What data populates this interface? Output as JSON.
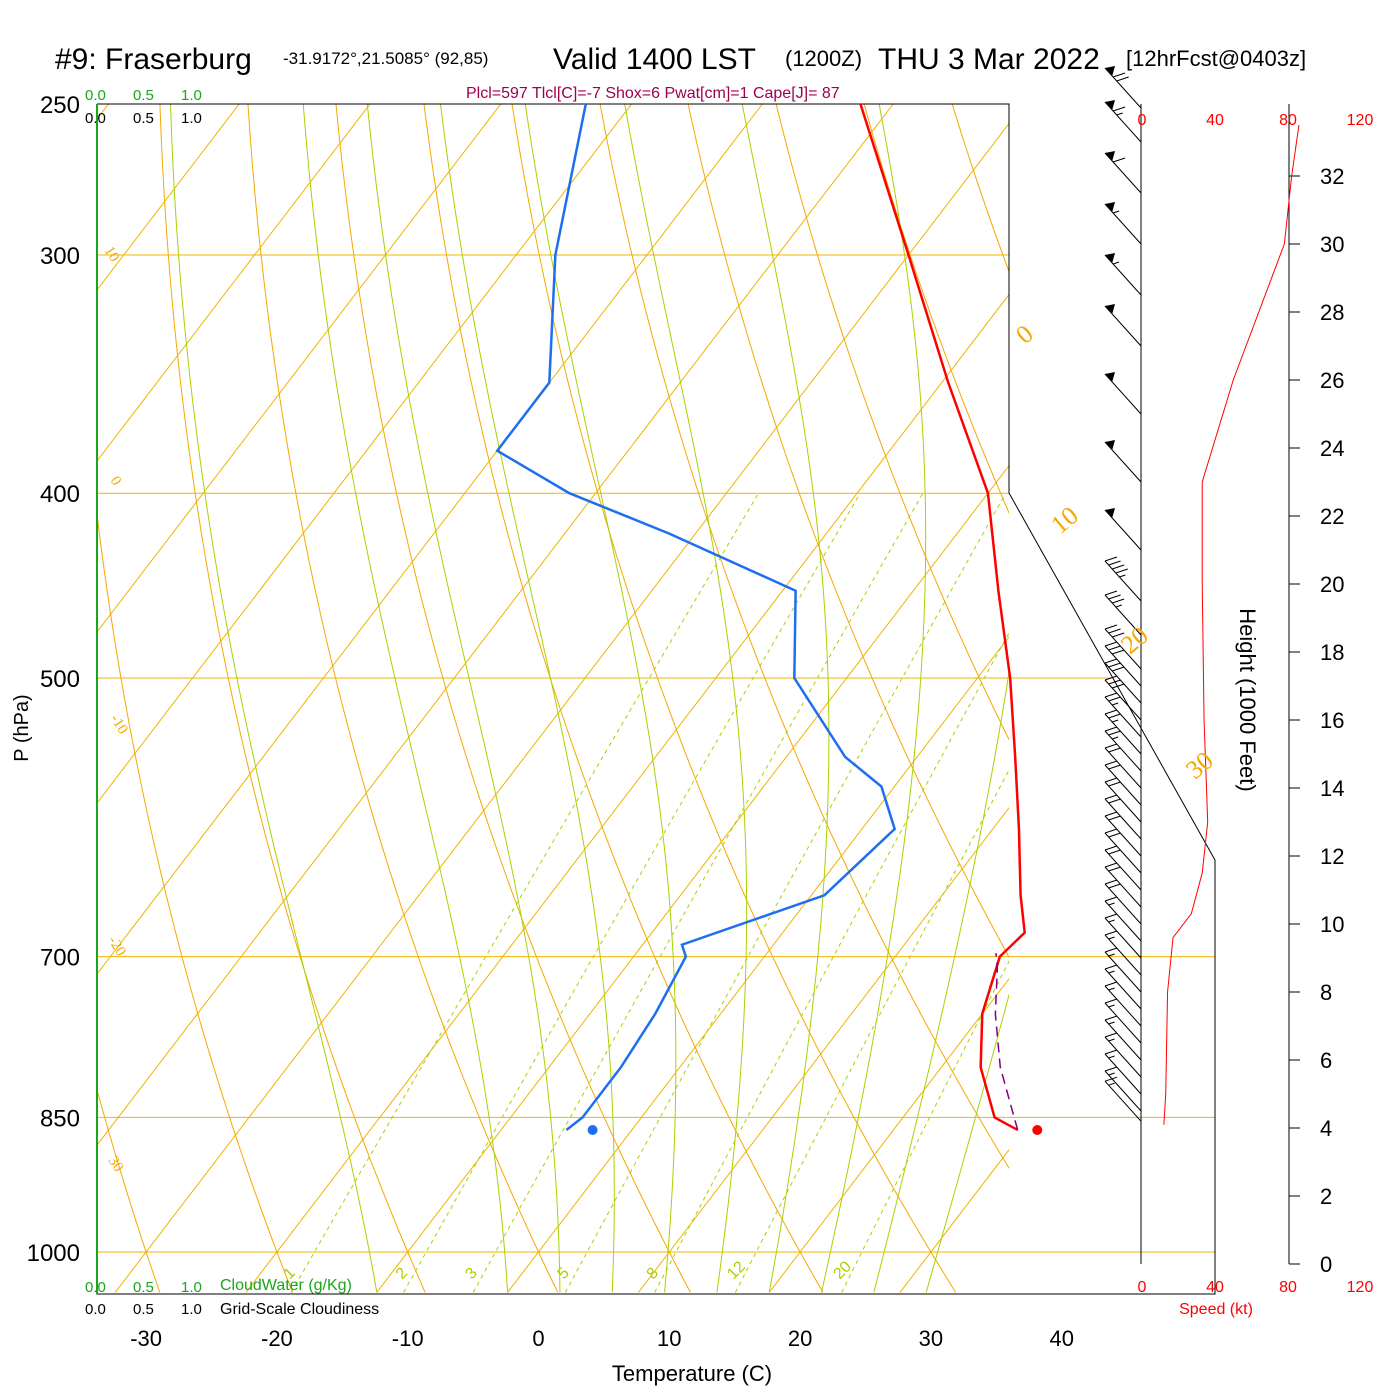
{
  "header": {
    "station": "#9: Fraserburg",
    "coords": "-31.9172°,21.5085° (92,85)",
    "valid": "Valid 1400 LST",
    "utc": "(1200Z)",
    "date": "THU 3 Mar 2022",
    "forecast": "[12hrFcst@0403z]"
  },
  "indices": "Plcl=597 Tlcl[C]=-7 Shox=6 Pwat[cm]=1 Cape[J]= 87",
  "scales": {
    "cloudwater_ticks": [
      "0.0",
      "0.5",
      "1.0"
    ],
    "cloudiness_ticks": [
      "0.0",
      "0.5",
      "1.0"
    ],
    "cloudwater_label": "CloudWater (g/Kg)",
    "cloudiness_label": "Grid-Scale Cloudiness",
    "speed_ticks": [
      "0",
      "40",
      "80",
      "120"
    ],
    "speed_label": "Speed (kt)"
  },
  "colors": {
    "temperature": "#ff0000",
    "dewpoint": "#1e6ff0",
    "parcel": "#800080",
    "isobar": "#f0b400",
    "dry_adiabat": "#f5a800",
    "moist_adiabat": "#a8d200",
    "mixing_ratio": "#a8d200",
    "cloudwater": "#1aa51a",
    "indices": "#a0004e",
    "speed": "#ff0000"
  },
  "chart_data": {
    "type": "skew-t",
    "xlabel": "Temperature (C)",
    "ylabel": "P (hPa)",
    "y2label": "Height (1000 Feet)",
    "x_ticks": [
      -30,
      -20,
      -10,
      0,
      10,
      20,
      30,
      40
    ],
    "p_ticks": [
      250,
      300,
      400,
      500,
      700,
      850,
      1000
    ],
    "p_range": [
      1000,
      250
    ],
    "height_ticks": [
      0,
      2,
      4,
      6,
      8,
      10,
      12,
      14,
      16,
      18,
      20,
      22,
      24,
      26,
      28,
      30,
      32
    ],
    "dry_adiabat_labels": [
      "30",
      "20",
      "10",
      "0",
      "-10",
      "-20",
      "-30",
      "0",
      "10",
      "20",
      "30"
    ],
    "mixing_ratio_labels": [
      "1",
      "2",
      "3",
      "5",
      "8",
      "12",
      "20"
    ],
    "temperature_profile": [
      {
        "p": 863,
        "t": 29.5
      },
      {
        "p": 850,
        "t": 27.0
      },
      {
        "p": 800,
        "t": 23.0
      },
      {
        "p": 750,
        "t": 20.0
      },
      {
        "p": 700,
        "t": 18.0
      },
      {
        "p": 680,
        "t": 18.5
      },
      {
        "p": 650,
        "t": 16.0
      },
      {
        "p": 600,
        "t": 12.0
      },
      {
        "p": 550,
        "t": 7.5
      },
      {
        "p": 500,
        "t": 2.5
      },
      {
        "p": 450,
        "t": -3.5
      },
      {
        "p": 400,
        "t": -10.0
      },
      {
        "p": 350,
        "t": -19.5
      },
      {
        "p": 300,
        "t": -30.0
      },
      {
        "p": 250,
        "t": -42.5
      }
    ],
    "dewpoint_profile": [
      {
        "p": 863,
        "td": -5.0
      },
      {
        "p": 850,
        "td": -4.5
      },
      {
        "p": 800,
        "td": -4.5
      },
      {
        "p": 750,
        "td": -5.0
      },
      {
        "p": 700,
        "td": -6.0
      },
      {
        "p": 690,
        "td": -7.0
      },
      {
        "p": 650,
        "td": 1.0
      },
      {
        "p": 600,
        "td": 2.5
      },
      {
        "p": 570,
        "td": -1.0
      },
      {
        "p": 550,
        "td": -5.5
      },
      {
        "p": 500,
        "td": -14.0
      },
      {
        "p": 450,
        "td": -19.0
      },
      {
        "p": 420,
        "td": -32.0
      },
      {
        "p": 400,
        "td": -42.0
      },
      {
        "p": 380,
        "td": -50.0
      },
      {
        "p": 350,
        "td": -50.0
      },
      {
        "p": 300,
        "td": -57.0
      },
      {
        "p": 250,
        "td": -63.5
      }
    ],
    "parcel_path": [
      {
        "p": 863,
        "t": 29.5
      },
      {
        "p": 800,
        "t": 24.5
      },
      {
        "p": 750,
        "t": 21.0
      },
      {
        "p": 710,
        "t": 18.5
      },
      {
        "p": 697,
        "t": 17.5
      }
    ],
    "surface_temperature": {
      "p": 863,
      "t": 31.0
    },
    "surface_dewpoint": {
      "p": 863,
      "td": -3.0
    },
    "wind_speed_profile": [
      {
        "h": 4.1,
        "kt": 12
      },
      {
        "h": 5,
        "kt": 13
      },
      {
        "h": 8,
        "kt": 14
      },
      {
        "h": 9.6,
        "kt": 17
      },
      {
        "h": 10.3,
        "kt": 27
      },
      {
        "h": 11.5,
        "kt": 33
      },
      {
        "h": 13,
        "kt": 36
      },
      {
        "h": 16,
        "kt": 34
      },
      {
        "h": 20,
        "kt": 33
      },
      {
        "h": 23,
        "kt": 33
      },
      {
        "h": 26,
        "kt": 50
      },
      {
        "h": 30,
        "kt": 78
      },
      {
        "h": 32,
        "kt": 82
      },
      {
        "h": 33.5,
        "kt": 86
      }
    ],
    "wind_barbs": [
      {
        "h": 34.0,
        "kt": 70
      },
      {
        "h": 33.0,
        "kt": 65
      },
      {
        "h": 31.5,
        "kt": 60
      },
      {
        "h": 30.0,
        "kt": 55
      },
      {
        "h": 28.5,
        "kt": 55
      },
      {
        "h": 27.0,
        "kt": 50
      },
      {
        "h": 25.0,
        "kt": 50
      },
      {
        "h": 23.0,
        "kt": 50
      },
      {
        "h": 21.0,
        "kt": 50
      },
      {
        "h": 19.5,
        "kt": 45
      },
      {
        "h": 18.5,
        "kt": 35
      },
      {
        "h": 17.5,
        "kt": 30
      },
      {
        "h": 17.0,
        "kt": 30
      },
      {
        "h": 16.5,
        "kt": 30
      },
      {
        "h": 16.0,
        "kt": 30
      },
      {
        "h": 15.5,
        "kt": 25
      },
      {
        "h": 15.0,
        "kt": 25
      },
      {
        "h": 14.5,
        "kt": 25
      },
      {
        "h": 14.0,
        "kt": 20
      },
      {
        "h": 13.5,
        "kt": 20
      },
      {
        "h": 13.0,
        "kt": 20
      },
      {
        "h": 12.5,
        "kt": 20
      },
      {
        "h": 12.0,
        "kt": 20
      },
      {
        "h": 11.5,
        "kt": 20
      },
      {
        "h": 11.0,
        "kt": 20
      },
      {
        "h": 10.5,
        "kt": 20
      },
      {
        "h": 10.0,
        "kt": 20
      },
      {
        "h": 9.5,
        "kt": 15
      },
      {
        "h": 9.0,
        "kt": 15
      },
      {
        "h": 8.5,
        "kt": 15
      },
      {
        "h": 8.0,
        "kt": 15
      },
      {
        "h": 7.5,
        "kt": 15
      },
      {
        "h": 7.0,
        "kt": 15
      },
      {
        "h": 6.5,
        "kt": 15
      },
      {
        "h": 6.0,
        "kt": 15
      },
      {
        "h": 5.5,
        "kt": 15
      },
      {
        "h": 5.0,
        "kt": 15
      },
      {
        "h": 4.5,
        "kt": 15
      },
      {
        "h": 4.2,
        "kt": 15
      }
    ]
  }
}
